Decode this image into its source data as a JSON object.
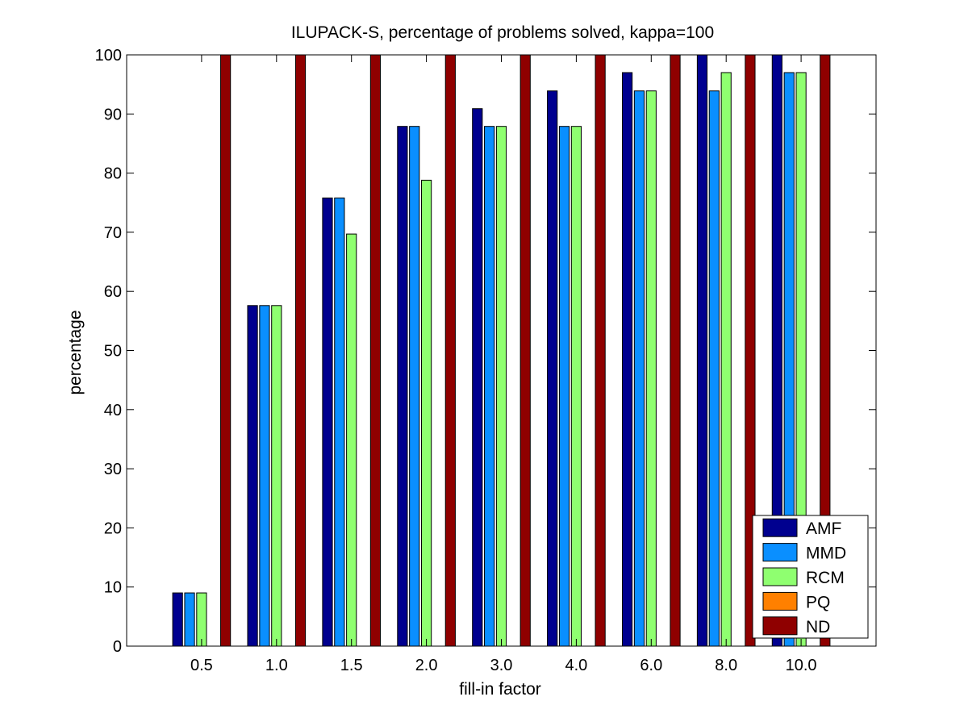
{
  "chart_data": {
    "type": "bar",
    "title": "ILUPACK-S, percentage of problems solved, kappa=100",
    "xlabel": "fill-in factor",
    "ylabel": "percentage",
    "ylim": [
      0,
      100
    ],
    "yticks": [
      "0",
      "10",
      "20",
      "30",
      "40",
      "50",
      "60",
      "70",
      "80",
      "90",
      "100"
    ],
    "categories": [
      "0.5",
      "1.0",
      "1.5",
      "2.0",
      "3.0",
      "4.0",
      "6.0",
      "8.0",
      "10.0"
    ],
    "series": [
      {
        "name": "AMF",
        "color": "#00008f",
        "values": [
          9,
          57.6,
          75.8,
          87.9,
          90.9,
          93.9,
          97,
          100,
          100
        ]
      },
      {
        "name": "MMD",
        "color": "#0a8fff",
        "values": [
          9,
          57.6,
          75.8,
          87.9,
          87.9,
          87.9,
          93.9,
          93.9,
          97
        ]
      },
      {
        "name": "RCM",
        "color": "#8fff70",
        "values": [
          9,
          57.6,
          69.7,
          78.8,
          87.9,
          87.9,
          93.9,
          97,
          97
        ]
      },
      {
        "name": "PQ",
        "color": "#ff8000",
        "values": [
          0,
          0,
          0,
          0,
          0,
          0,
          0,
          0,
          0
        ]
      },
      {
        "name": "ND",
        "color": "#8f0000",
        "values": [
          100,
          100,
          100,
          100,
          100,
          100,
          100,
          100,
          100
        ]
      }
    ],
    "grid": false,
    "legend_position": "bottom-right"
  }
}
